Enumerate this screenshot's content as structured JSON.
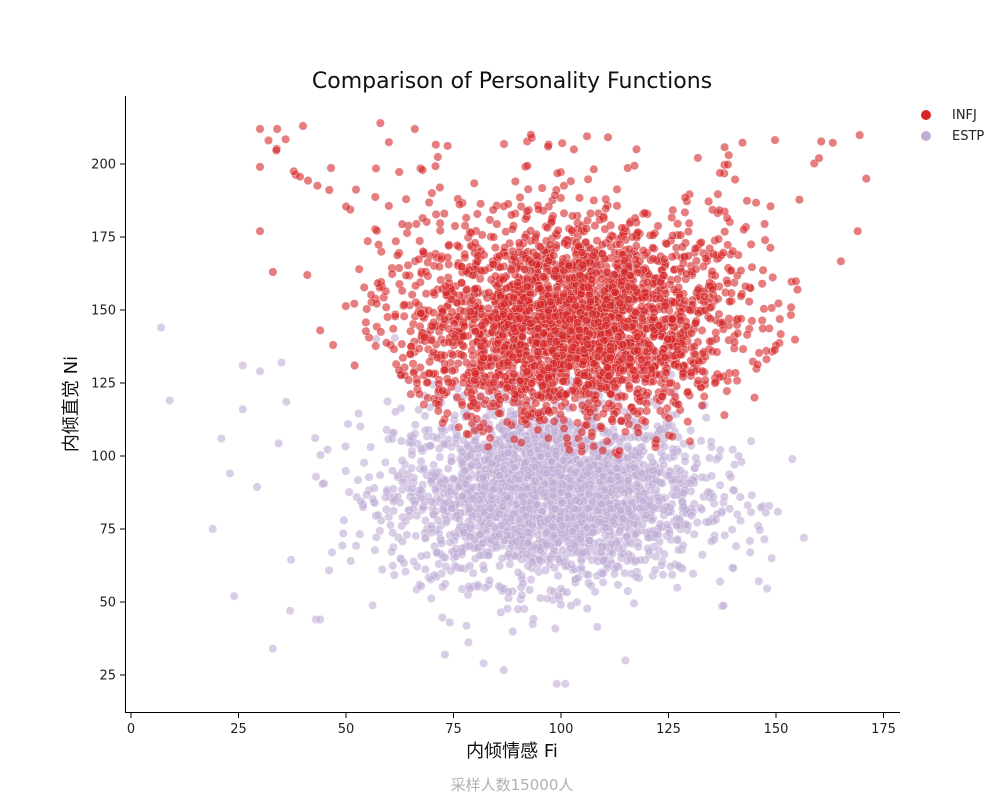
{
  "chart_data": {
    "type": "scatter",
    "title": "Comparison of Personality Functions",
    "xlabel": "内倾情感 Fi",
    "ylabel": "内倾直觉 Ni",
    "footnote": "采样人数15000人",
    "xlim": [
      -1,
      180
    ],
    "ylim": [
      12,
      225
    ],
    "xticks": [
      0,
      25,
      50,
      75,
      100,
      125,
      150,
      175
    ],
    "yticks": [
      25,
      50,
      75,
      100,
      125,
      150,
      175,
      200
    ],
    "grid": false,
    "legend_position": "top-right",
    "series": [
      {
        "name": "INFJ",
        "color": "#d62728",
        "x_center": 101,
        "y_center": 145,
        "notable_points": [
          {
            "x": 30,
            "y": 212
          },
          {
            "x": 34,
            "y": 212
          },
          {
            "x": 40,
            "y": 213
          },
          {
            "x": 58,
            "y": 214
          },
          {
            "x": 66,
            "y": 212
          },
          {
            "x": 30,
            "y": 199
          },
          {
            "x": 30,
            "y": 177
          },
          {
            "x": 33,
            "y": 163
          },
          {
            "x": 41,
            "y": 162
          },
          {
            "x": 44,
            "y": 143
          },
          {
            "x": 47,
            "y": 138
          },
          {
            "x": 52,
            "y": 131
          },
          {
            "x": 93,
            "y": 210
          },
          {
            "x": 97,
            "y": 206
          },
          {
            "x": 103,
            "y": 205
          },
          {
            "x": 139,
            "y": 203
          },
          {
            "x": 160,
            "y": 202
          },
          {
            "x": 171,
            "y": 195
          },
          {
            "x": 169,
            "y": 177
          },
          {
            "x": 155,
            "y": 157
          },
          {
            "x": 145,
            "y": 120
          },
          {
            "x": 138,
            "y": 114
          },
          {
            "x": 130,
            "y": 105
          },
          {
            "x": 122,
            "y": 103
          },
          {
            "x": 118,
            "y": 108
          }
        ]
      },
      {
        "name": "ESTP",
        "color": "#c0aed5",
        "x_center": 97,
        "y_center": 87,
        "notable_points": [
          {
            "x": 7,
            "y": 144
          },
          {
            "x": 9,
            "y": 119
          },
          {
            "x": 19,
            "y": 75
          },
          {
            "x": 21,
            "y": 106
          },
          {
            "x": 23,
            "y": 94
          },
          {
            "x": 24,
            "y": 52
          },
          {
            "x": 26,
            "y": 131
          },
          {
            "x": 26,
            "y": 116
          },
          {
            "x": 30,
            "y": 129
          },
          {
            "x": 33,
            "y": 34
          },
          {
            "x": 35,
            "y": 132
          },
          {
            "x": 37,
            "y": 47
          },
          {
            "x": 43,
            "y": 44
          },
          {
            "x": 44,
            "y": 44
          },
          {
            "x": 57,
            "y": 140
          },
          {
            "x": 73,
            "y": 32
          },
          {
            "x": 82,
            "y": 29
          },
          {
            "x": 99,
            "y": 22
          },
          {
            "x": 101,
            "y": 22
          },
          {
            "x": 115,
            "y": 30
          },
          {
            "x": 141,
            "y": 80
          },
          {
            "x": 144,
            "y": 67
          },
          {
            "x": 149,
            "y": 65
          },
          {
            "x": 137,
            "y": 57
          },
          {
            "x": 138,
            "y": 86
          }
        ]
      }
    ]
  }
}
